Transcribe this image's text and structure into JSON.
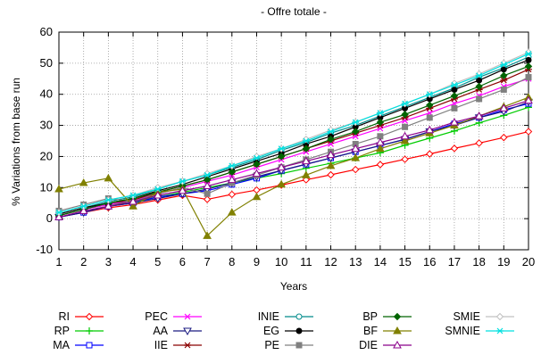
{
  "chart_data": {
    "type": "line",
    "title": "- Offre totale -",
    "xlabel": "Years",
    "ylabel": "% Variations from base run",
    "x": [
      1,
      2,
      3,
      4,
      5,
      6,
      7,
      8,
      9,
      10,
      11,
      12,
      13,
      14,
      15,
      16,
      17,
      18,
      19,
      20
    ],
    "xlim": [
      1,
      20
    ],
    "ylim": [
      -10,
      60
    ],
    "yticks": [
      -10,
      0,
      10,
      20,
      30,
      40,
      50,
      60
    ],
    "grid": true,
    "legend_placement": "bottom",
    "series": [
      {
        "name": "RI",
        "color": "#ff0000",
        "marker": "diamond-open",
        "values": [
          0.5,
          2.0,
          3.5,
          4.5,
          6.0,
          7.5,
          6.2,
          7.8,
          9.2,
          10.8,
          12.5,
          14.1,
          15.8,
          17.4,
          19.1,
          20.8,
          22.6,
          24.3,
          26.1,
          28.0
        ]
      },
      {
        "name": "RP",
        "color": "#00cc00",
        "marker": "plus",
        "values": [
          1.0,
          3.0,
          4.5,
          5.5,
          7.0,
          8.5,
          10.0,
          11.5,
          13.0,
          14.5,
          16.2,
          17.8,
          19.5,
          21.2,
          23.6,
          25.9,
          28.2,
          30.8,
          33.2,
          35.8
        ]
      },
      {
        "name": "MA",
        "color": "#0000ff",
        "marker": "square-open",
        "values": [
          0.5,
          2.0,
          4.0,
          5.0,
          7.0,
          8.0,
          9.0,
          11.0,
          13.0,
          15.5,
          17.5,
          19.5,
          21.5,
          23.5,
          25.5,
          28.0,
          30.5,
          32.5,
          35.0,
          37.0
        ]
      },
      {
        "name": "PEC",
        "color": "#ff00ff",
        "marker": "x",
        "values": [
          1.0,
          3.0,
          4.5,
          6.0,
          8.0,
          10.0,
          12.0,
          14.0,
          16.5,
          19.0,
          21.5,
          24.0,
          26.5,
          29.0,
          31.5,
          34.0,
          37.0,
          39.5,
          42.5,
          45.0
        ]
      },
      {
        "name": "AA",
        "color": "#1a1a80",
        "marker": "triangle-down-open",
        "values": [
          0.5,
          2.0,
          4.0,
          5.0,
          6.5,
          8.0,
          9.5,
          11.5,
          13.5,
          15.5,
          17.5,
          19.5,
          21.5,
          23.5,
          25.5,
          28.0,
          30.0,
          32.5,
          34.5,
          37.5
        ]
      },
      {
        "name": "IIE",
        "color": "#8b0000",
        "marker": "star",
        "values": [
          1.0,
          3.0,
          5.0,
          6.0,
          8.5,
          10.5,
          12.5,
          15.0,
          17.5,
          20.0,
          22.5,
          25.0,
          27.5,
          30.0,
          32.5,
          35.5,
          38.5,
          41.5,
          44.5,
          48.0
        ]
      },
      {
        "name": "INIE",
        "color": "#008b8b",
        "marker": "circle-open",
        "values": [
          1.5,
          3.5,
          5.5,
          7.0,
          9.5,
          12.0,
          14.0,
          16.5,
          19.0,
          22.0,
          24.5,
          27.5,
          30.0,
          33.0,
          36.0,
          39.0,
          42.0,
          45.5,
          48.5,
          52.0
        ]
      },
      {
        "name": "EG",
        "color": "#000000",
        "marker": "circle-filled",
        "values": [
          1.5,
          3.5,
          5.0,
          6.5,
          9.0,
          11.0,
          13.5,
          16.0,
          18.5,
          21.0,
          24.0,
          26.5,
          29.5,
          32.5,
          35.5,
          38.5,
          41.5,
          44.5,
          48.0,
          51.0
        ]
      },
      {
        "name": "PE",
        "color": "#808080",
        "marker": "square-filled",
        "values": [
          2.5,
          4.5,
          6.5,
          5.5,
          8.0,
          10.0,
          8.0,
          11.5,
          14.0,
          16.5,
          19.0,
          21.5,
          24.0,
          26.5,
          29.5,
          32.5,
          35.5,
          38.5,
          41.5,
          45.5
        ]
      },
      {
        "name": "BP",
        "color": "#006400",
        "marker": "diamond-filled",
        "values": [
          1.0,
          3.0,
          5.0,
          6.5,
          8.5,
          10.5,
          12.5,
          15.0,
          17.5,
          20.0,
          22.5,
          25.5,
          28.0,
          31.0,
          33.5,
          36.5,
          39.5,
          42.5,
          46.0,
          49.0
        ]
      },
      {
        "name": "BF",
        "color": "#808000",
        "marker": "triangle-up-filled",
        "values": [
          9.5,
          11.5,
          13.0,
          4.0,
          8.5,
          9.5,
          -5.5,
          2.0,
          7.0,
          11.0,
          14.0,
          17.0,
          19.5,
          22.5,
          25.0,
          27.5,
          30.0,
          33.0,
          36.0,
          39.0
        ]
      },
      {
        "name": "DIE",
        "color": "#8b008b",
        "marker": "triangle-up-open",
        "values": [
          0.5,
          2.5,
          4.0,
          5.5,
          7.5,
          9.0,
          10.5,
          12.5,
          14.5,
          16.5,
          18.5,
          20.5,
          22.5,
          24.5,
          26.5,
          28.5,
          31.0,
          33.0,
          35.5,
          38.0
        ]
      },
      {
        "name": "SMIE",
        "color": "#c0c0c0",
        "marker": "diamond-open",
        "values": [
          2.0,
          4.0,
          6.0,
          7.5,
          10.0,
          12.0,
          14.5,
          17.0,
          20.0,
          22.5,
          25.5,
          28.5,
          31.0,
          34.0,
          37.0,
          40.0,
          43.5,
          46.5,
          50.0,
          53.5
        ]
      },
      {
        "name": "SMNIE",
        "color": "#00e0e0",
        "marker": "star",
        "values": [
          2.0,
          4.0,
          6.0,
          7.5,
          9.5,
          12.0,
          14.0,
          17.0,
          19.5,
          22.5,
          25.0,
          28.0,
          31.0,
          34.0,
          37.0,
          40.0,
          43.0,
          46.0,
          49.5,
          53.0
        ]
      }
    ],
    "legend_columns": [
      [
        "RI",
        "RP",
        "MA"
      ],
      [
        "PEC",
        "AA",
        "IIE"
      ],
      [
        "INIE",
        "EG",
        "PE"
      ],
      [
        "BP",
        "BF",
        "DIE"
      ],
      [
        "SMIE",
        "SMNIE"
      ]
    ]
  }
}
